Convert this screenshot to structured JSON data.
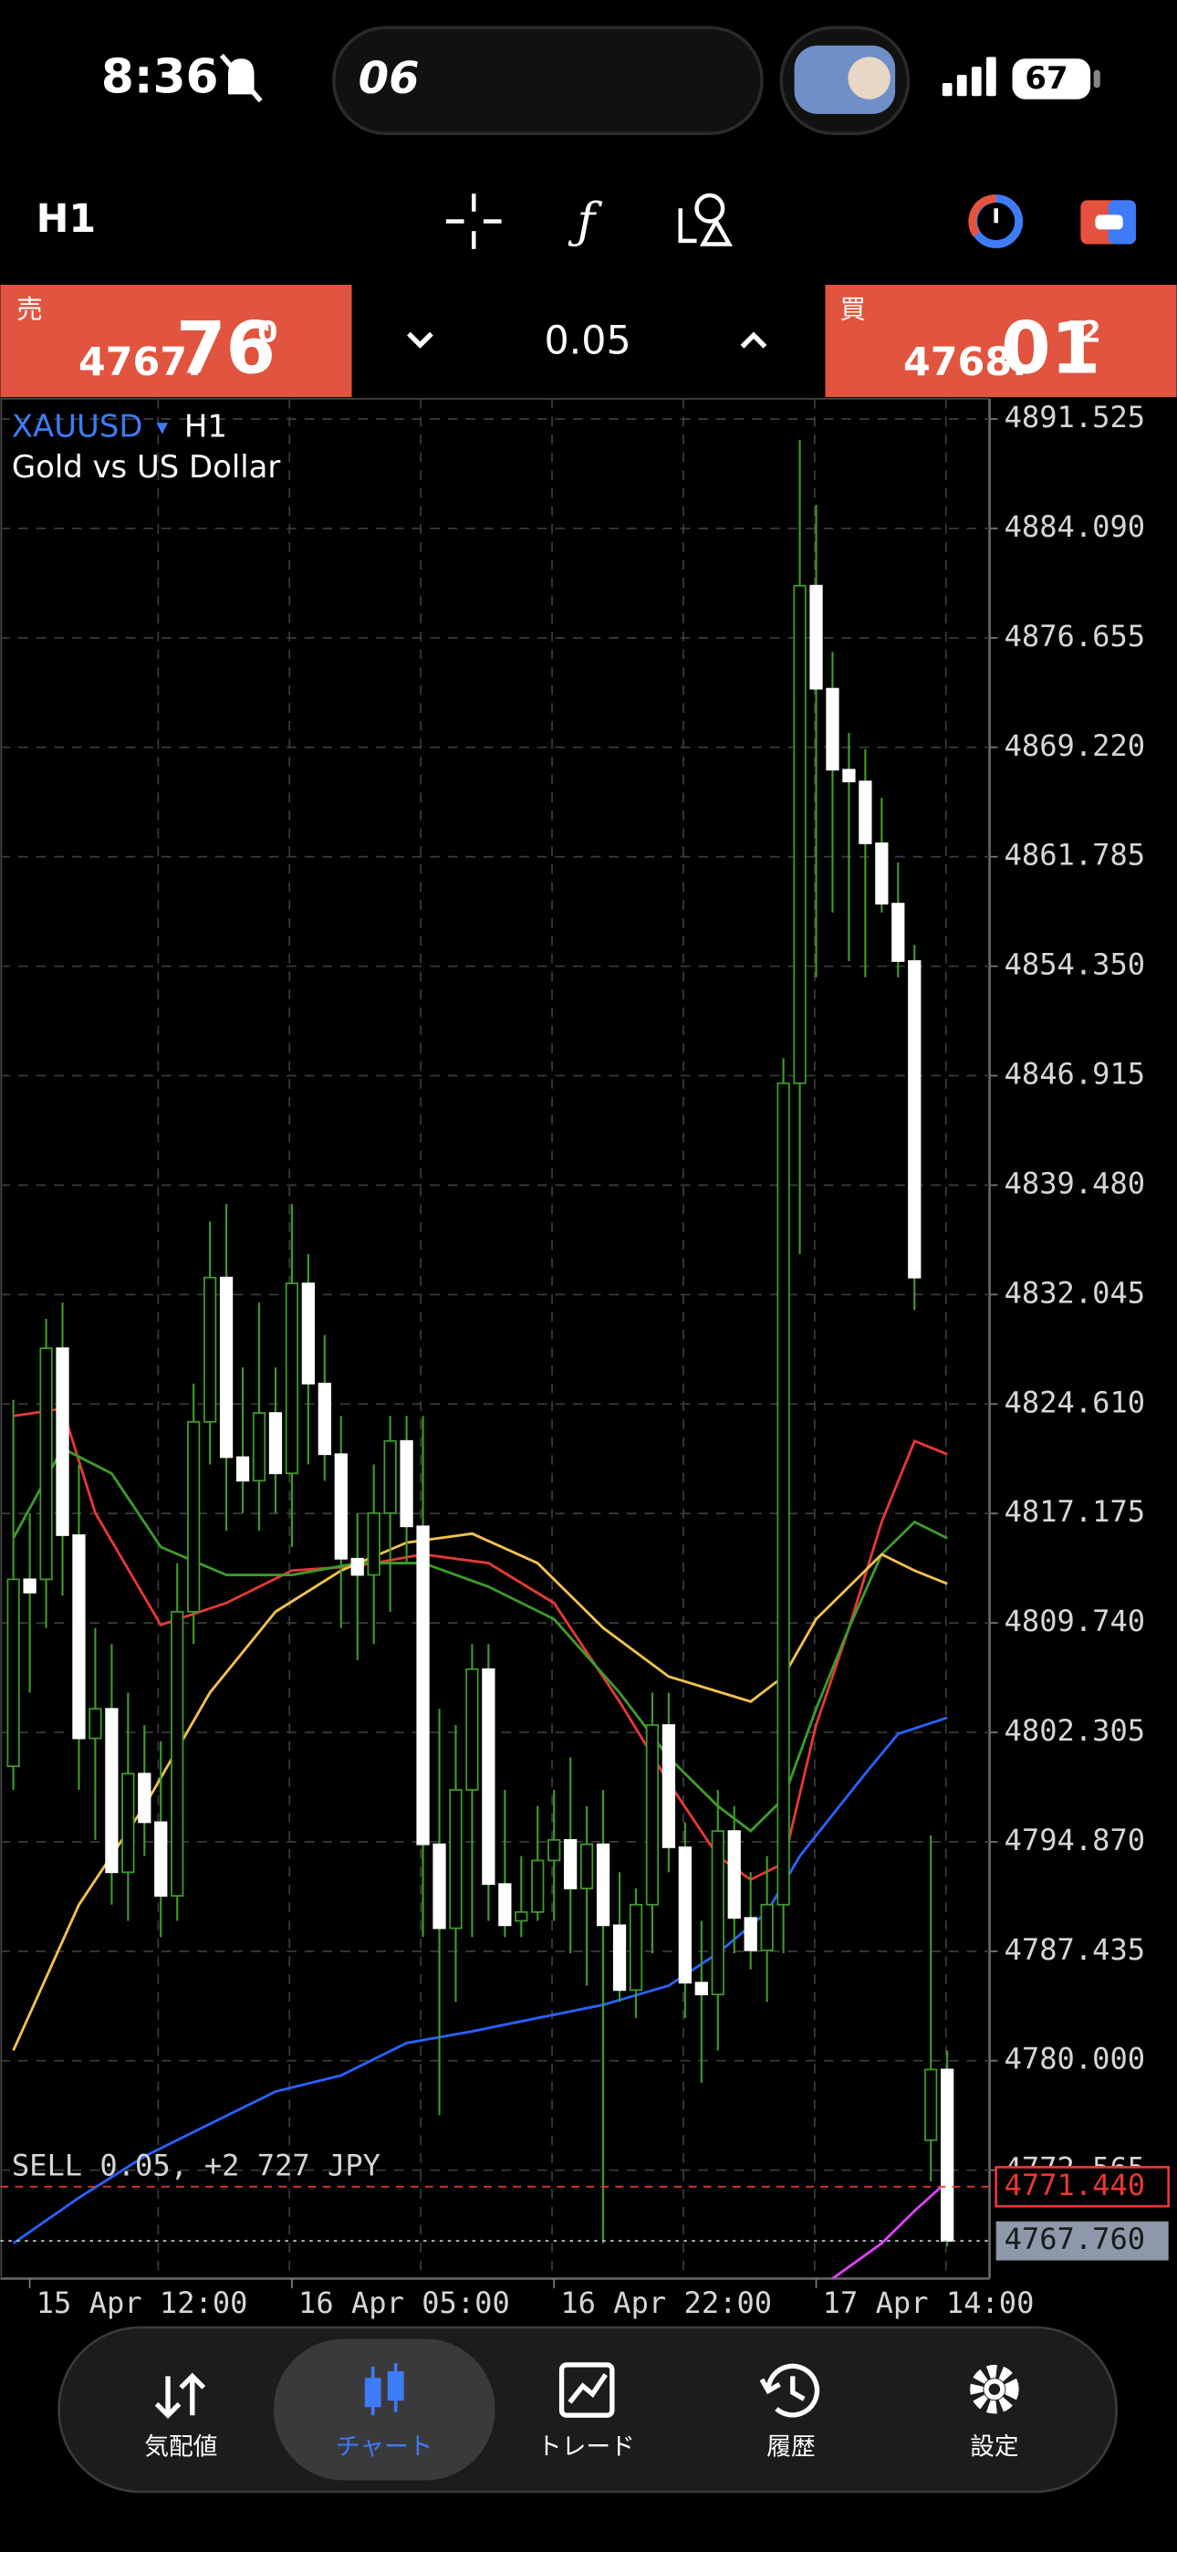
{
  "status": {
    "time": "8:36",
    "island": "06",
    "battery": "67"
  },
  "toolbar": {
    "timeframe": "H1"
  },
  "trade": {
    "sell": {
      "label": "売",
      "price_head": "4767.",
      "price_big": "76",
      "price_tail": "0"
    },
    "volume": "0.05",
    "buy": {
      "label": "買",
      "price_head": "4768.",
      "price_big": "01",
      "price_tail": "2"
    }
  },
  "nav": [
    {
      "label": "気配値"
    },
    {
      "label": "チャート"
    },
    {
      "label": "トレード"
    },
    {
      "label": "履歴"
    },
    {
      "label": "設定"
    }
  ],
  "chart_data": {
    "type": "candlestick",
    "symbol": "XAUUSD",
    "symbol_arrow": "▾",
    "timeframe": "H1",
    "description": "Gold vs US Dollar",
    "up_color": "#000000",
    "down_color": "#ffffff",
    "wick_color": "#3f9b2a",
    "grid": true,
    "ylim": [
      4765.2,
      4892.9
    ],
    "yticks": [
      {
        "value": 4891.525,
        "label": "4891.525"
      },
      {
        "value": 4884.09,
        "label": "4884.090"
      },
      {
        "value": 4876.655,
        "label": "4876.655"
      },
      {
        "value": 4869.22,
        "label": "4869.220"
      },
      {
        "value": 4861.785,
        "label": "4861.785"
      },
      {
        "value": 4854.35,
        "label": "4854.350"
      },
      {
        "value": 4846.915,
        "label": "4846.915"
      },
      {
        "value": 4839.48,
        "label": "4839.480"
      },
      {
        "value": 4832.045,
        "label": "4832.045"
      },
      {
        "value": 4824.61,
        "label": "4824.610"
      },
      {
        "value": 4817.175,
        "label": "4817.175"
      },
      {
        "value": 4809.74,
        "label": "4809.740"
      },
      {
        "value": 4802.305,
        "label": "4802.305"
      },
      {
        "value": 4794.87,
        "label": "4794.870"
      },
      {
        "value": 4787.435,
        "label": "4787.435"
      },
      {
        "value": 4780.0,
        "label": "4780.000"
      },
      {
        "value": 4772.565,
        "label": "4772.565"
      }
    ],
    "categories": [
      null,
      "15 Apr 12:00",
      null,
      null,
      null,
      null,
      null,
      null,
      null,
      null,
      null,
      null,
      null,
      null,
      null,
      null,
      null,
      "16 Apr 05:00",
      null,
      null,
      null,
      null,
      null,
      null,
      null,
      null,
      null,
      null,
      null,
      null,
      null,
      null,
      null,
      "16 Apr 22:00",
      null,
      null,
      null,
      null,
      null,
      null,
      null,
      null,
      null,
      null,
      null,
      null,
      null,
      null,
      null,
      "17 Apr 14:00",
      null,
      null,
      null,
      null,
      null,
      null,
      null,
      null
    ],
    "candles": [
      [
        4800.0,
        4824.9,
        4798.4,
        4812.7
      ],
      [
        4812.7,
        4817.2,
        4805.0,
        4811.8
      ],
      [
        4812.7,
        4830.4,
        4809.4,
        4828.4
      ],
      [
        4828.4,
        4831.5,
        4811.6,
        4815.7
      ],
      [
        4815.7,
        4820.5,
        4798.4,
        4801.9
      ],
      [
        4801.9,
        4809.4,
        4795.0,
        4803.9
      ],
      [
        4803.9,
        4808.3,
        4790.6,
        4792.8
      ],
      [
        4792.8,
        4805.0,
        4789.5,
        4799.5
      ],
      [
        4799.5,
        4802.8,
        4793.9,
        4796.2
      ],
      [
        4796.2,
        4801.7,
        4788.4,
        4791.2
      ],
      [
        4791.2,
        4813.8,
        4789.5,
        4810.5
      ],
      [
        4810.5,
        4826.0,
        4808.3,
        4823.4
      ],
      [
        4823.4,
        4837.0,
        4820.5,
        4833.2
      ],
      [
        4833.2,
        4838.2,
        4816.0,
        4821.0
      ],
      [
        4821.0,
        4827.1,
        4817.2,
        4819.4
      ],
      [
        4819.4,
        4831.5,
        4816.0,
        4824.0
      ],
      [
        4824.0,
        4827.1,
        4817.2,
        4819.9
      ],
      [
        4819.9,
        4838.2,
        4814.9,
        4832.8
      ],
      [
        4832.8,
        4834.8,
        4820.5,
        4826.0
      ],
      [
        4826.0,
        4829.3,
        4819.4,
        4821.2
      ],
      [
        4821.2,
        4823.8,
        4809.4,
        4814.1
      ],
      [
        4814.1,
        4817.2,
        4807.2,
        4813.0
      ],
      [
        4813.0,
        4820.5,
        4808.3,
        4817.2
      ],
      [
        4817.2,
        4823.8,
        4810.5,
        4822.1
      ],
      [
        4822.1,
        4823.8,
        4813.8,
        4816.3
      ],
      [
        4816.3,
        4823.8,
        4788.4,
        4794.7
      ],
      [
        4794.7,
        4803.9,
        4776.3,
        4789.0
      ],
      [
        4789.0,
        4802.8,
        4784.0,
        4798.4
      ],
      [
        4798.4,
        4808.3,
        4788.4,
        4806.6
      ],
      [
        4806.6,
        4808.3,
        4789.5,
        4792.0
      ],
      [
        4792.0,
        4798.4,
        4788.4,
        4789.2
      ],
      [
        4789.5,
        4793.9,
        4788.4,
        4790.1
      ],
      [
        4790.1,
        4797.3,
        4789.5,
        4793.6
      ],
      [
        4793.6,
        4798.4,
        4789.5,
        4795.0
      ],
      [
        4795.0,
        4800.6,
        4787.3,
        4791.7
      ],
      [
        4791.7,
        4797.3,
        4785.1,
        4794.7
      ],
      [
        4794.7,
        4798.4,
        4767.6,
        4789.2
      ],
      [
        4789.2,
        4792.8,
        4784.0,
        4784.8
      ],
      [
        4784.8,
        4791.7,
        4782.9,
        4790.6
      ],
      [
        4790.6,
        4805.0,
        4787.3,
        4802.8
      ],
      [
        4802.8,
        4805.0,
        4792.8,
        4794.5
      ],
      [
        4794.5,
        4796.2,
        4782.9,
        4785.3
      ],
      [
        4785.3,
        4789.5,
        4778.5,
        4784.5
      ],
      [
        4784.5,
        4798.4,
        4780.7,
        4795.6
      ],
      [
        4795.6,
        4797.3,
        4787.3,
        4789.7
      ],
      [
        4789.7,
        4792.8,
        4786.2,
        4787.5
      ],
      [
        4787.5,
        4793.9,
        4784.0,
        4790.6
      ],
      [
        4790.6,
        4848.1,
        4787.3,
        4846.4
      ],
      [
        4846.4,
        4890.1,
        4834.8,
        4880.2
      ],
      [
        4880.2,
        4885.7,
        4853.6,
        4873.2
      ],
      [
        4873.2,
        4875.7,
        4858.0,
        4867.7
      ],
      [
        4867.7,
        4870.2,
        4854.7,
        4866.9
      ],
      [
        4866.9,
        4869.1,
        4853.6,
        4862.7
      ],
      [
        4862.7,
        4865.8,
        4858.0,
        4858.6
      ],
      [
        4858.6,
        4861.4,
        4853.6,
        4854.7
      ],
      [
        4854.7,
        4855.8,
        4831.0,
        4833.2
      ],
      [
        4774.6,
        4795.3,
        4771.8,
        4779.4
      ],
      [
        4779.4,
        4780.7,
        4767.4,
        4767.76
      ]
    ],
    "series": [
      {
        "color": "#e53935",
        "x": [
          0,
          3,
          5,
          9,
          13,
          17,
          21,
          25,
          29,
          33,
          37,
          40,
          43,
          45,
          47,
          49,
          51,
          53,
          55,
          57
        ],
        "values": [
          4823.8,
          4824.3,
          4817.2,
          4809.6,
          4811.1,
          4813.3,
          4813.6,
          4814.4,
          4813.8,
          4811.1,
          4804.4,
          4798.9,
          4793.9,
          4792.3,
          4793.4,
          4802.8,
          4809.4,
          4816.6,
          4822.1,
          4821.2
        ]
      },
      {
        "color": "#3f9b2a",
        "x": [
          0,
          3,
          6,
          9,
          13,
          17,
          21,
          25,
          29,
          33,
          37,
          40,
          43,
          45,
          47,
          49,
          51,
          53,
          55,
          57
        ],
        "values": [
          4815.5,
          4821.6,
          4819.9,
          4814.9,
          4813.0,
          4813.0,
          4813.8,
          4813.8,
          4812.2,
          4810.0,
          4805.0,
          4800.6,
          4797.3,
          4795.6,
          4797.8,
          4803.9,
          4809.4,
          4814.4,
          4816.6,
          4815.5
        ]
      },
      {
        "color": "#f2c14e",
        "x": [
          0,
          4,
          8,
          12,
          16,
          20,
          24,
          28,
          32,
          36,
          40,
          45,
          47,
          49,
          51,
          53,
          55,
          57
        ],
        "values": [
          4780.7,
          4790.6,
          4797.3,
          4805.0,
          4810.5,
          4813.3,
          4815.2,
          4815.8,
          4813.8,
          4809.4,
          4806.1,
          4804.4,
          4806.1,
          4810.0,
          4812.2,
          4814.4,
          4813.3,
          4812.4
        ]
      },
      {
        "color": "#2962ff",
        "x": [
          0,
          4,
          8,
          12,
          16,
          20,
          24,
          28,
          32,
          36,
          40,
          43,
          46,
          48,
          50,
          52,
          54,
          57
        ],
        "values": [
          4767.6,
          4770.7,
          4773.5,
          4775.7,
          4777.9,
          4779.0,
          4781.2,
          4782.0,
          4782.9,
          4783.8,
          4785.1,
          4787.3,
          4790.1,
          4793.9,
          4796.7,
          4799.5,
          4802.2,
          4803.3
        ]
      },
      {
        "color": "#e040fb",
        "x": [
          50,
          53,
          55,
          57
        ],
        "values": [
          4765.2,
          4767.6,
          4769.8,
          4771.8
        ]
      }
    ],
    "position": {
      "label": "SELL 0.05,",
      "profit_label": "+2 727 JPY",
      "value": 4771.44,
      "value_label": "4771.440",
      "color": "#e53935",
      "profit_color": "#2f6fe0"
    },
    "bid": {
      "value": 4767.76,
      "label": "4767.760"
    }
  }
}
